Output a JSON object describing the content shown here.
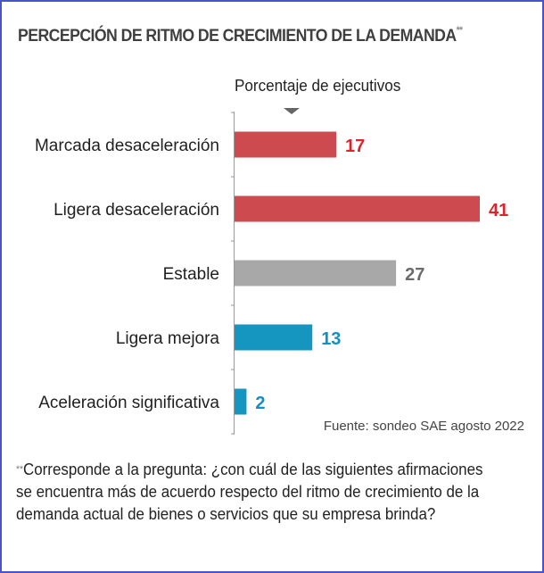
{
  "chart_data": {
    "type": "bar",
    "orientation": "horizontal",
    "title": "PERCEPCIÓN DE RITMO DE CRECIMIENTO DE LA DEMANDA",
    "title_marker": "**",
    "subtitle": "Porcentaje de ejecutivos",
    "xlabel": "Porcentaje de ejecutivos",
    "ylabel": "",
    "categories": [
      "Marcada desaceleración",
      "Ligera desaceleración",
      "Estable",
      "Ligera mejora",
      "Aceleración significativa"
    ],
    "values": [
      17,
      41,
      27,
      13,
      2
    ],
    "value_labels": [
      "17",
      "41",
      "27",
      "13",
      "2"
    ],
    "colors": [
      "#cd4b4f",
      "#cd4b4f",
      "#a8a8a8",
      "#1496c0",
      "#1496c0"
    ],
    "label_colors": [
      "#d8262d",
      "#d8262d",
      "#6b6b6b",
      "#1490be",
      "#1490be"
    ],
    "xlim": [
      0,
      41
    ],
    "grid": false,
    "legend": "none"
  },
  "source": "Fuente: sondeo SAE agosto 2022",
  "footnote": {
    "marker": "**",
    "text": "Corresponde a la pregunta: ¿con cuál de las siguientes afirmaciones se encuentra más de acuerdo respecto del ritmo de crecimiento de la demanda actual de bienes o servicios que su empresa brinda?"
  }
}
